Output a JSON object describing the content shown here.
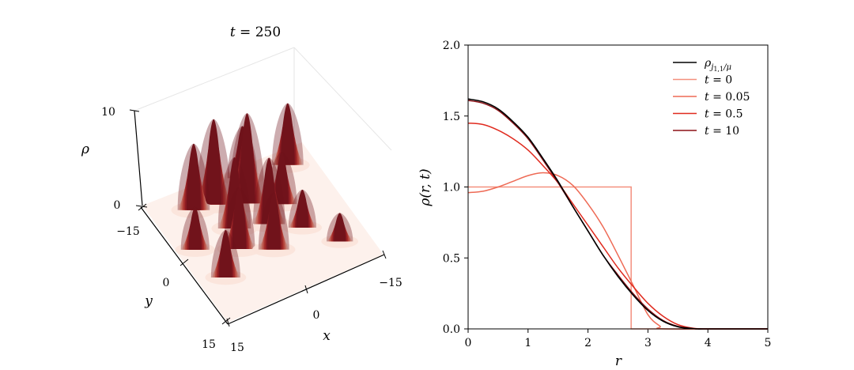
{
  "chart_data": [
    {
      "type": "surface3d",
      "title_var": "t",
      "title_value": "250",
      "xlabel": "x",
      "ylabel": "y",
      "zlabel": "ρ",
      "x_ticks": [
        "−15",
        "0",
        "15"
      ],
      "y_ticks": [
        "−15",
        "0",
        "15"
      ],
      "z_ticks": [
        "0",
        "10"
      ],
      "xlim": [
        -15,
        15
      ],
      "ylim": [
        -15,
        15
      ],
      "zlim": [
        0,
        10
      ],
      "colormap": "Reds",
      "peaks": [
        {
          "x": -10.5,
          "y": -11.5,
          "height": 6.5
        },
        {
          "x": -5.5,
          "y": -4.0,
          "height": 5.5
        },
        {
          "x": -6.0,
          "y": 2.5,
          "height": 4.0
        },
        {
          "x": -2.5,
          "y": -12.5,
          "height": 5.5
        },
        {
          "x": -0.5,
          "y": -7.0,
          "height": 9.5
        },
        {
          "x": -1.5,
          "y": -1.0,
          "height": 7.0
        },
        {
          "x": 0.5,
          "y": 4.5,
          "height": 6.0
        },
        {
          "x": 4.5,
          "y": -9.5,
          "height": 9.0
        },
        {
          "x": 4.0,
          "y": -3.0,
          "height": 7.5
        },
        {
          "x": 5.5,
          "y": 1.5,
          "height": 6.5
        },
        {
          "x": 8.0,
          "y": -10.0,
          "height": 7.0
        },
        {
          "x": 10.5,
          "y": 6.0,
          "height": 5.0
        },
        {
          "x": -10.0,
          "y": 8.5,
          "height": 3.0
        },
        {
          "x": 12.0,
          "y": -2.0,
          "height": 4.5
        }
      ]
    },
    {
      "type": "line",
      "xlabel": "r",
      "ylabel": "ρ(r, t)",
      "xlim": [
        0,
        5
      ],
      "ylim": [
        0,
        2
      ],
      "x_ticks": [
        "0",
        "1",
        "2",
        "3",
        "4",
        "5"
      ],
      "y_ticks": [
        "0.0",
        "0.5",
        "1.0",
        "1.5",
        "2.0"
      ],
      "legend_position": "top-right",
      "series": [
        {
          "name": "ρ_{j_{1,1}/μ}",
          "color": "#000000",
          "x": [
            0,
            0.25,
            0.5,
            0.75,
            1.0,
            1.25,
            1.5,
            1.75,
            2.0,
            2.25,
            2.5,
            2.75,
            3.0,
            3.25,
            3.5,
            3.75,
            3.83,
            4.0,
            5.0
          ],
          "y": [
            1.62,
            1.6,
            1.55,
            1.46,
            1.35,
            1.2,
            1.04,
            0.86,
            0.69,
            0.52,
            0.37,
            0.24,
            0.13,
            0.055,
            0.015,
            0.002,
            0.0,
            0.0,
            0.0
          ]
        },
        {
          "name": "t = 0",
          "color": "#f4907e",
          "x": [
            0,
            2.6,
            2.6,
            2.72,
            2.72,
            5.0
          ],
          "y": [
            1.0,
            1.0,
            1.0,
            1.0,
            0.0,
            0.0
          ]
        },
        {
          "name": "t = 0.05",
          "color": "#ee6a55",
          "x": [
            0,
            0.25,
            0.5,
            0.75,
            1.0,
            1.25,
            1.5,
            1.75,
            2.0,
            2.25,
            2.5,
            2.75,
            3.0,
            3.2,
            3.3,
            5.0
          ],
          "y": [
            0.96,
            0.97,
            1.0,
            1.04,
            1.08,
            1.1,
            1.08,
            1.01,
            0.88,
            0.72,
            0.52,
            0.31,
            0.1,
            0.02,
            0.0,
            0.0
          ]
        },
        {
          "name": "t = 0.5",
          "color": "#e02a1e",
          "x": [
            0,
            0.25,
            0.5,
            0.75,
            1.0,
            1.25,
            1.5,
            1.75,
            2.0,
            2.25,
            2.5,
            2.75,
            3.0,
            3.25,
            3.5,
            3.75,
            4.0,
            5.0
          ],
          "y": [
            1.45,
            1.44,
            1.4,
            1.34,
            1.26,
            1.15,
            1.03,
            0.88,
            0.73,
            0.58,
            0.43,
            0.3,
            0.18,
            0.09,
            0.03,
            0.005,
            0.0,
            0.0
          ]
        },
        {
          "name": "t = 10",
          "color": "#8c1116",
          "x": [
            0,
            0.25,
            0.5,
            0.75,
            1.0,
            1.25,
            1.5,
            1.75,
            2.0,
            2.25,
            2.5,
            2.75,
            3.0,
            3.25,
            3.5,
            3.75,
            3.85,
            4.0,
            5.0
          ],
          "y": [
            1.61,
            1.59,
            1.54,
            1.45,
            1.34,
            1.19,
            1.03,
            0.86,
            0.69,
            0.52,
            0.38,
            0.25,
            0.14,
            0.06,
            0.018,
            0.003,
            0.0,
            0.0,
            0.0
          ]
        }
      ]
    }
  ]
}
